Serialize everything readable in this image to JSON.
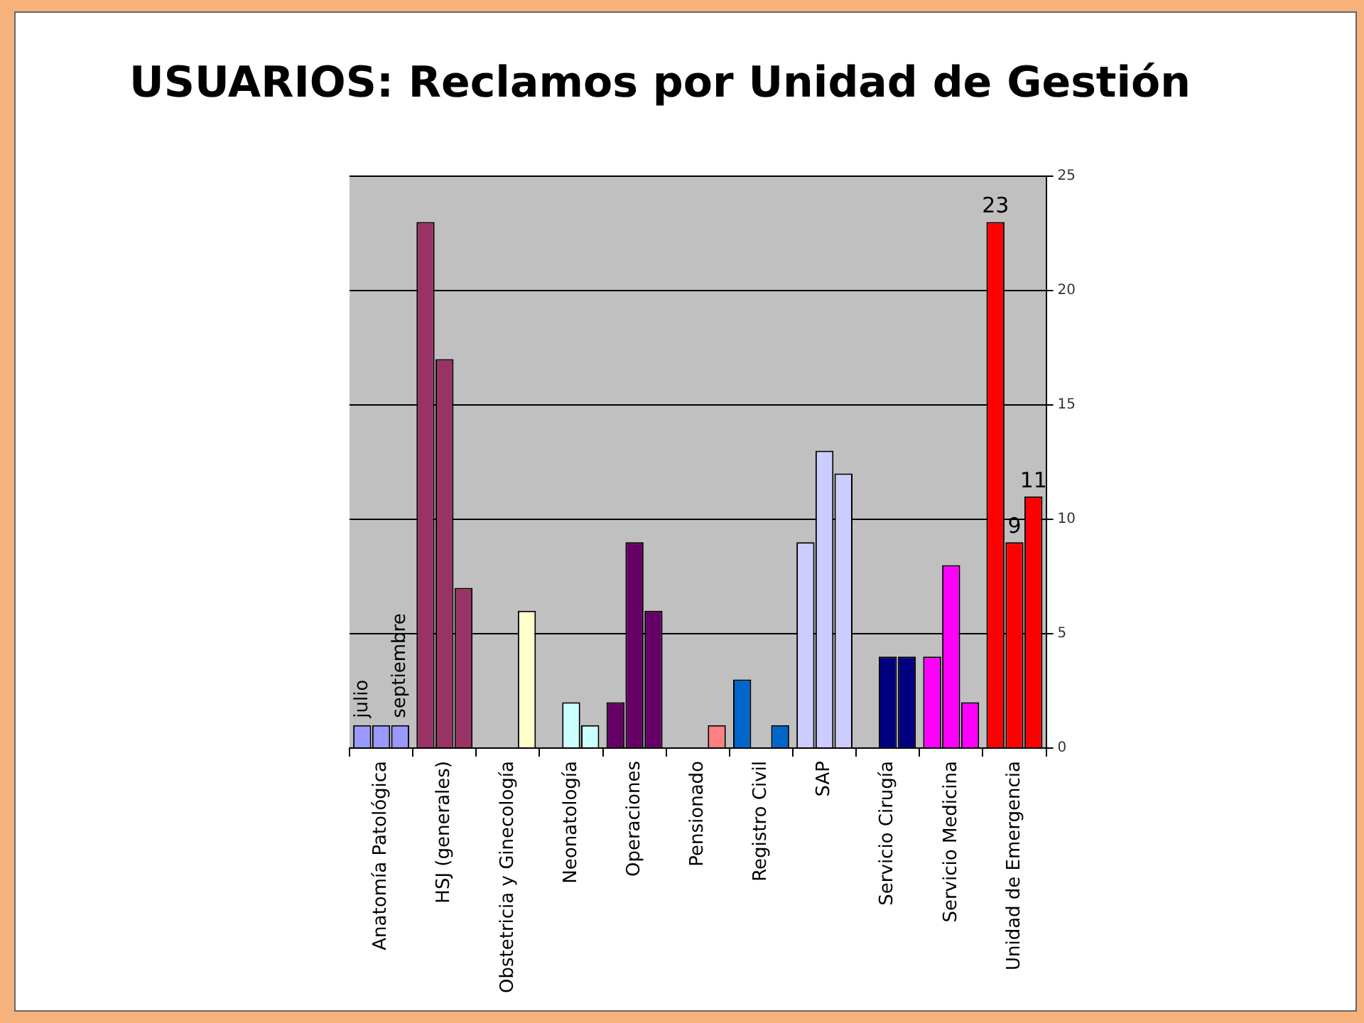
{
  "chart_data": {
    "type": "bar",
    "title": "USUARIOS: Reclamos por Unidad de Gestión",
    "categories": [
      "Anatomía Patológica",
      "HSJ (generales)",
      "Obstetricia y Ginecología",
      "Neonatología",
      "Operaciones",
      "Pensionado",
      "Registro Civil",
      "SAP",
      "Servicio Cirugía",
      "Servicio Medicina",
      "Unidad de Emergencia"
    ],
    "series": [
      {
        "name": "julio",
        "colors": [
          "#9999ff",
          "#993366",
          "#ffffcc",
          "#ccffff",
          "#660066",
          "#ff8080",
          "#0066cc",
          "#ccccff",
          "#000080",
          "#ff00ff",
          "#ff0000"
        ],
        "values": [
          1,
          23,
          null,
          null,
          2,
          null,
          3,
          9,
          null,
          4,
          23
        ],
        "value_labels": [
          null,
          null,
          null,
          null,
          null,
          null,
          null,
          null,
          null,
          null,
          "23"
        ]
      },
      {
        "colors": [
          "#9999ff",
          "#993366",
          "#ffffcc",
          "#ccffff",
          "#660066",
          "#ff8080",
          "#0066cc",
          "#ccccff",
          "#000080",
          "#ff00ff",
          "#ff0000"
        ],
        "values": [
          1,
          17,
          null,
          2,
          9,
          null,
          null,
          13,
          4,
          8,
          9
        ],
        "value_labels": [
          null,
          null,
          null,
          null,
          null,
          null,
          null,
          null,
          null,
          null,
          "9"
        ]
      },
      {
        "name": "septiembre",
        "colors": [
          "#9999ff",
          "#993366",
          "#ffffcc",
          "#ccffff",
          "#660066",
          "#ff8080",
          "#0066cc",
          "#ccccff",
          "#000080",
          "#ff00ff",
          "#ff0000"
        ],
        "values": [
          1,
          7,
          6,
          1,
          6,
          1,
          1,
          12,
          4,
          2,
          11
        ],
        "value_labels": [
          null,
          null,
          null,
          null,
          null,
          null,
          null,
          null,
          null,
          null,
          "11"
        ]
      }
    ],
    "ylim": [
      0,
      25
    ],
    "yticks": [
      0,
      5,
      10,
      15,
      20,
      25
    ],
    "grid": "y"
  }
}
